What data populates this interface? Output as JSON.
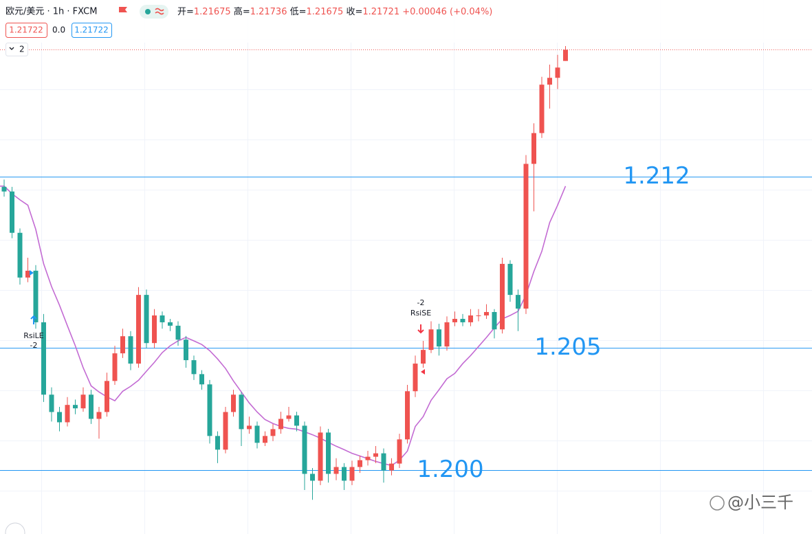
{
  "header": {
    "symbol": "欧元/美元 · 1h · FXCM",
    "open_label": "开=",
    "high_label": "高=",
    "low_label": "低=",
    "close_label": "收=",
    "change": "+0.00046",
    "change_pct": "(+0.04%)",
    "bid": 1.21722,
    "spread": "0.0",
    "ask": 1.21722,
    "lots": 2
  },
  "chart_data": {
    "type": "candlestick",
    "up_color": "#ef5350",
    "down_color": "#26a69a",
    "ylim": [
      1.1974,
      1.2175
    ],
    "open": [
      1.2116,
      1.21141,
      1.20972,
      1.20789,
      1.20817,
      1.20606,
      1.2031,
      1.20239,
      1.20197,
      1.20268,
      1.20254,
      1.2031,
      1.20211,
      1.20239,
      1.20366,
      1.20479,
      1.20549,
      1.20437,
      1.20718,
      1.20521,
      1.20634,
      1.20606,
      1.20592,
      1.20535,
      1.20451,
      1.20394,
      1.20352,
      1.20141,
      1.20085,
      1.20239,
      1.2031,
      1.20169,
      1.20183,
      1.20113,
      1.20141,
      1.20169,
      1.20211,
      1.20225,
      1.20183,
      1.19986,
      1.19958,
      1.20155,
      1.19986,
      1.20014,
      1.19958,
      1.20014,
      1.20042,
      1.20056,
      1.2007,
      1.2,
      1.20028,
      1.20127,
      1.20324,
      1.20437,
      1.20493,
      1.20577,
      1.20507,
      1.20606,
      1.2062,
      1.20606,
      1.20634,
      1.20634,
      1.20648,
      1.20577,
      1.20845,
      1.20718,
      1.20662,
      1.21254,
      1.2138,
      1.21578,
      1.21606,
      1.21675
    ],
    "high": [
      1.2119,
      1.2116,
      1.2099,
      1.2087,
      1.2084,
      1.2064,
      1.2034,
      1.2026,
      1.203,
      1.2029,
      1.2034,
      1.2033,
      1.2026,
      1.204,
      1.2051,
      1.2058,
      1.2057,
      1.2075,
      1.2074,
      1.2066,
      1.2065,
      1.2062,
      1.2061,
      1.2055,
      1.2047,
      1.2041,
      1.2037,
      1.2016,
      1.2026,
      1.2033,
      1.2032,
      1.2022,
      1.202,
      1.2016,
      1.2019,
      1.2024,
      1.2026,
      1.2024,
      1.202,
      1.2001,
      1.2018,
      1.2017,
      1.2005,
      1.2003,
      1.2004,
      1.2006,
      1.2008,
      1.201,
      1.2009,
      1.2005,
      1.2015,
      1.2035,
      1.2047,
      1.2053,
      1.2061,
      1.206,
      1.2063,
      1.2065,
      1.2064,
      1.2066,
      1.2066,
      1.2068,
      1.2066,
      1.2087,
      1.2086,
      1.2074,
      1.2129,
      1.2142,
      1.2161,
      1.2166,
      1.217,
      1.21736
    ],
    "low": [
      1.2112,
      1.2095,
      1.2076,
      1.2077,
      1.2058,
      1.2028,
      1.202,
      1.2016,
      1.2018,
      1.2023,
      1.2024,
      1.2019,
      1.2013,
      1.2022,
      1.2035,
      1.2046,
      1.2041,
      1.2042,
      1.205,
      1.205,
      1.2058,
      1.2057,
      1.2051,
      1.2042,
      1.2037,
      1.2033,
      1.2011,
      1.2003,
      1.2007,
      1.2022,
      1.201,
      1.2015,
      1.2009,
      1.201,
      1.2012,
      1.2015,
      1.202,
      1.2016,
      1.1992,
      1.1988,
      1.1994,
      1.1995,
      1.1996,
      1.1992,
      1.1994,
      1.1999,
      1.2002,
      1.2003,
      1.1995,
      1.1998,
      1.2001,
      1.2011,
      1.203,
      1.2042,
      1.2048,
      1.2047,
      1.2049,
      1.2059,
      1.2059,
      1.2059,
      1.2061,
      1.2062,
      1.2054,
      1.2056,
      1.2069,
      1.2057,
      1.2064,
      1.2106,
      1.2136,
      1.2148,
      1.2156,
      1.21675
    ],
    "close": [
      1.21141,
      1.20972,
      1.20789,
      1.20817,
      1.20606,
      1.2031,
      1.20239,
      1.20197,
      1.20268,
      1.20254,
      1.2031,
      1.20211,
      1.20239,
      1.20366,
      1.20479,
      1.20549,
      1.20437,
      1.20718,
      1.20521,
      1.20634,
      1.20606,
      1.20592,
      1.20535,
      1.20451,
      1.20394,
      1.20352,
      1.20141,
      1.20085,
      1.20239,
      1.2031,
      1.20169,
      1.20183,
      1.20113,
      1.20141,
      1.20169,
      1.20211,
      1.20225,
      1.20183,
      1.19986,
      1.19958,
      1.20155,
      1.19986,
      1.20014,
      1.19958,
      1.20014,
      1.20042,
      1.20056,
      1.2007,
      1.2,
      1.20028,
      1.20127,
      1.20324,
      1.20437,
      1.20493,
      1.20577,
      1.20507,
      1.20606,
      1.2062,
      1.20606,
      1.20634,
      1.20634,
      1.20648,
      1.20577,
      1.20845,
      1.20718,
      1.20662,
      1.21254,
      1.2138,
      1.21578,
      1.21606,
      1.21648,
      1.21721
    ],
    "ma": {
      "color": "#c36bd3",
      "values": [
        1.21163,
        1.21132,
        1.21107,
        1.21085,
        1.20986,
        1.20845,
        1.20752,
        1.20676,
        1.20592,
        1.2051,
        1.2042,
        1.20346,
        1.20321,
        1.20301,
        1.20285,
        1.20324,
        1.20344,
        1.20369,
        1.20406,
        1.20442,
        1.20482,
        1.2051,
        1.2053,
        1.20544,
        1.2053,
        1.20515,
        1.2049,
        1.20456,
        1.20417,
        1.20366,
        1.20321,
        1.20276,
        1.20239,
        1.20208,
        1.20192,
        1.2018,
        1.20172,
        1.20169,
        1.20158,
        1.20146,
        1.20132,
        1.20115,
        1.20099,
        1.20085,
        1.2007,
        1.20059,
        1.20048,
        1.20037,
        1.20028,
        1.2002,
        1.20042,
        1.20079,
        1.2018,
        1.2022,
        1.20287,
        1.2033,
        1.20375,
        1.20397,
        1.20437,
        1.2047,
        1.20507,
        1.20544,
        1.20583,
        1.2062,
        1.20634,
        1.20651,
        1.20718,
        1.20814,
        1.20896,
        1.21014,
        1.21085,
        1.21163
      ]
    },
    "levels": [
      1.212,
      1.205,
      {
        "value": 1.2,
        "label": "1.200"
      }
    ],
    "level_color": "#2196f3",
    "signals": [
      {
        "name": "RsiLE",
        "qty": -2,
        "color": "#2196f3"
      },
      {
        "name": "RsiSE",
        "qty": -2,
        "color": "#f23645"
      }
    ]
  },
  "watermark": "@小三千"
}
